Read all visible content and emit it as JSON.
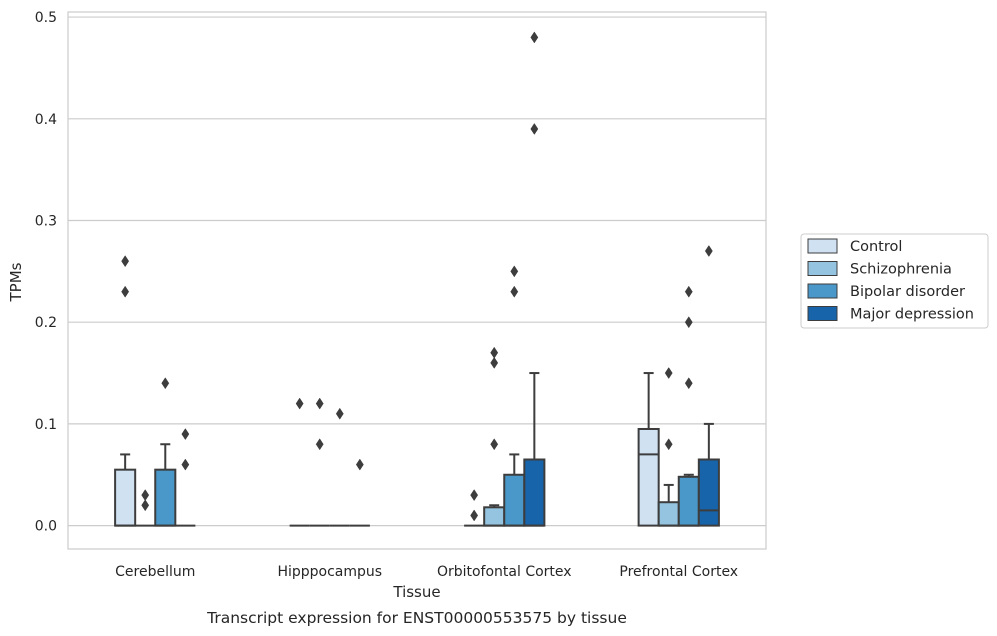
{
  "caption": "Transcript expression for ENST00000553575 by tissue",
  "chart_data": {
    "type": "box",
    "xlabel": "Tissue",
    "ylabel": "TPMs",
    "ylim": [
      -0.023,
      0.505
    ],
    "yticks": [
      0.0,
      0.1,
      0.2,
      0.3,
      0.4,
      0.5
    ],
    "ytick_labels": [
      "0.0",
      "0.1",
      "0.2",
      "0.3",
      "0.4",
      "0.5"
    ],
    "grid": true,
    "legend_position": "right",
    "categories": [
      "Cerebellum",
      "Hipppocampus",
      "Orbitofontal Cortex",
      "Prefrontal Cortex"
    ],
    "series": [
      {
        "name": "Control",
        "color": "#d0e1f2",
        "boxes": [
          {
            "q1": 0.0,
            "median": 0.0,
            "q3": 0.055,
            "whisker_low": 0.0,
            "whisker_high": 0.07,
            "outliers": [
              0.23,
              0.26
            ]
          },
          {
            "q1": 0.0,
            "median": 0.0,
            "q3": 0.0,
            "whisker_low": 0.0,
            "whisker_high": 0.0,
            "outliers": [
              0.12
            ]
          },
          {
            "q1": 0.0,
            "median": 0.0,
            "q3": 0.0,
            "whisker_low": 0.0,
            "whisker_high": 0.0,
            "outliers": [
              0.01,
              0.03
            ]
          },
          {
            "q1": 0.0,
            "median": 0.07,
            "q3": 0.095,
            "whisker_low": 0.0,
            "whisker_high": 0.15,
            "outliers": []
          }
        ]
      },
      {
        "name": "Schizophrenia",
        "color": "#94c4df",
        "boxes": [
          {
            "q1": 0.0,
            "median": 0.0,
            "q3": 0.0,
            "whisker_low": 0.0,
            "whisker_high": 0.0,
            "outliers": [
              0.02,
              0.03
            ]
          },
          {
            "q1": 0.0,
            "median": 0.0,
            "q3": 0.0,
            "whisker_low": 0.0,
            "whisker_high": 0.0,
            "outliers": [
              0.08,
              0.12
            ]
          },
          {
            "q1": 0.0,
            "median": 0.0,
            "q3": 0.018,
            "whisker_low": 0.0,
            "whisker_high": 0.02,
            "outliers": [
              0.08,
              0.16,
              0.17
            ]
          },
          {
            "q1": 0.0,
            "median": 0.0,
            "q3": 0.023,
            "whisker_low": 0.0,
            "whisker_high": 0.04,
            "outliers": [
              0.08,
              0.15
            ]
          }
        ]
      },
      {
        "name": "Bipolar disorder",
        "color": "#4a98c9",
        "boxes": [
          {
            "q1": 0.0,
            "median": 0.0,
            "q3": 0.055,
            "whisker_low": 0.0,
            "whisker_high": 0.08,
            "outliers": [
              0.14
            ]
          },
          {
            "q1": 0.0,
            "median": 0.0,
            "q3": 0.0,
            "whisker_low": 0.0,
            "whisker_high": 0.0,
            "outliers": [
              0.11
            ]
          },
          {
            "q1": 0.0,
            "median": 0.0,
            "q3": 0.05,
            "whisker_low": 0.0,
            "whisker_high": 0.07,
            "outliers": [
              0.23,
              0.25
            ]
          },
          {
            "q1": 0.0,
            "median": 0.0,
            "q3": 0.048,
            "whisker_low": 0.0,
            "whisker_high": 0.05,
            "outliers": [
              0.14,
              0.2,
              0.23
            ]
          }
        ]
      },
      {
        "name": "Major depression",
        "color": "#1764ab",
        "boxes": [
          {
            "q1": 0.0,
            "median": 0.0,
            "q3": 0.0,
            "whisker_low": 0.0,
            "whisker_high": 0.0,
            "outliers": [
              0.06,
              0.09
            ]
          },
          {
            "q1": 0.0,
            "median": 0.0,
            "q3": 0.0,
            "whisker_low": 0.0,
            "whisker_high": 0.0,
            "outliers": [
              0.06
            ]
          },
          {
            "q1": 0.0,
            "median": 0.0,
            "q3": 0.065,
            "whisker_low": 0.0,
            "whisker_high": 0.15,
            "outliers": [
              0.39,
              0.48
            ]
          },
          {
            "q1": 0.0,
            "median": 0.015,
            "q3": 0.065,
            "whisker_low": 0.0,
            "whisker_high": 0.1,
            "outliers": [
              0.27
            ]
          }
        ]
      }
    ]
  }
}
